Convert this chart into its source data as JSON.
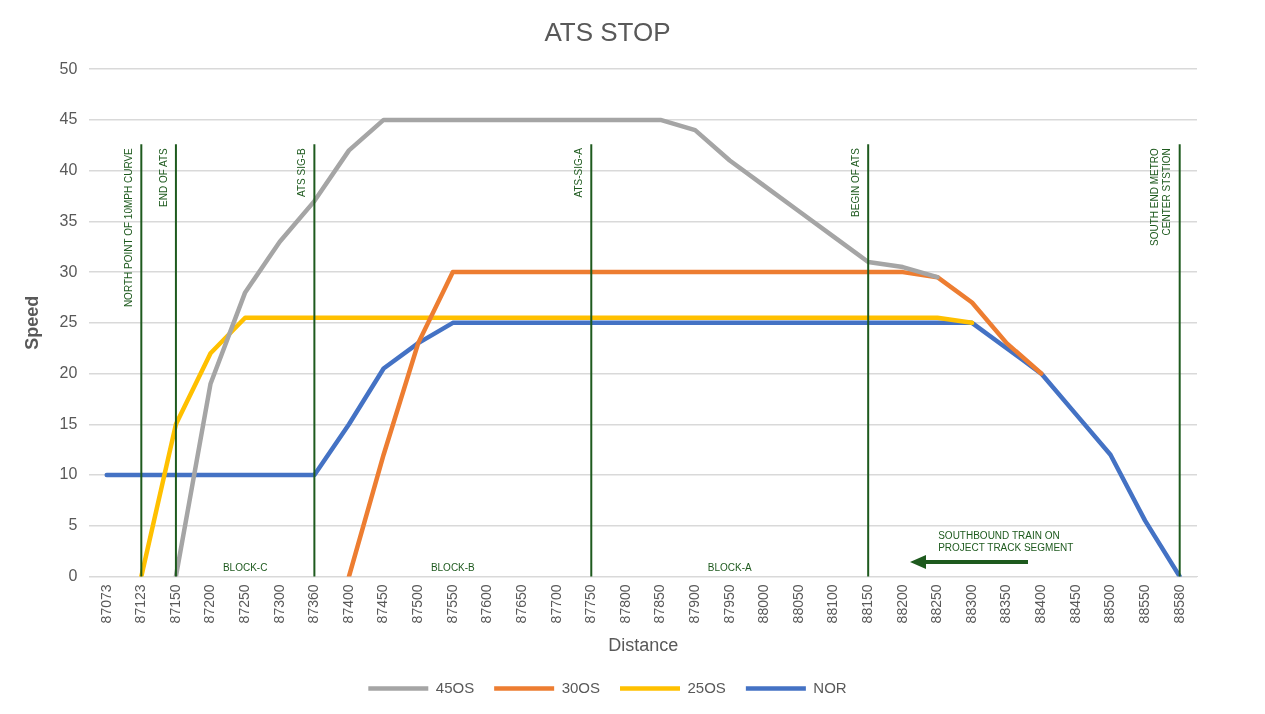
{
  "chart_data": {
    "type": "line",
    "title": "ATS STOP",
    "xlabel": "Distance",
    "ylabel": "Speed",
    "categories": [
      "87073",
      "87123",
      "87150",
      "87200",
      "87250",
      "87300",
      "87360",
      "87400",
      "87450",
      "87500",
      "87550",
      "87600",
      "87650",
      "87700",
      "87750",
      "87800",
      "87850",
      "87900",
      "87950",
      "88000",
      "88050",
      "88100",
      "88150",
      "88200",
      "88250",
      "88300",
      "88350",
      "88400",
      "88450",
      "88500",
      "88550",
      "88580"
    ],
    "series": [
      {
        "name": "45OS",
        "color": "#a5a5a5",
        "values": [
          null,
          null,
          0,
          19,
          28,
          33,
          37,
          42,
          45,
          45,
          45,
          45,
          45,
          45,
          45,
          45,
          45,
          44,
          41,
          38.5,
          36,
          33.5,
          31,
          30.5,
          29.5,
          null,
          null,
          null,
          null,
          null,
          null,
          null
        ]
      },
      {
        "name": "30OS",
        "color": "#ed7d31",
        "values": [
          null,
          null,
          null,
          null,
          null,
          null,
          null,
          0,
          12,
          23,
          30,
          30,
          30,
          30,
          30,
          30,
          30,
          30,
          30,
          30,
          30,
          30,
          30,
          30,
          29.5,
          27,
          23,
          20,
          null,
          null,
          null,
          null
        ]
      },
      {
        "name": "25OS",
        "color": "#ffc000",
        "values": [
          null,
          0,
          15,
          22,
          25.5,
          25.5,
          25.5,
          25.5,
          25.5,
          25.5,
          25.5,
          25.5,
          25.5,
          25.5,
          25.5,
          25.5,
          25.5,
          25.5,
          25.5,
          25.5,
          25.5,
          25.5,
          25.5,
          25.5,
          25.5,
          25,
          null,
          null,
          null,
          null,
          null,
          null
        ]
      },
      {
        "name": "NOR",
        "color": "#4472c4",
        "values": [
          10,
          10,
          10,
          10,
          10,
          10,
          10,
          15,
          20.5,
          23,
          25,
          25,
          25,
          25,
          25,
          25,
          25,
          25,
          25,
          25,
          25,
          25,
          25,
          25,
          25,
          25,
          22.5,
          20,
          16,
          12,
          5.5,
          0
        ]
      }
    ],
    "ylim": [
      0,
      50
    ],
    "yticks": [
      0,
      5,
      10,
      15,
      20,
      25,
      30,
      35,
      40,
      45,
      50
    ],
    "grid": "y",
    "legend": "bottom",
    "marker": "none",
    "line_style": "solid",
    "ref_lines": [
      {
        "axis": "x",
        "value": "87123",
        "label": "NORTH POINT OF 10MPH CURVE",
        "color": "#1e5a1e"
      },
      {
        "axis": "x",
        "value": "87150",
        "label": "END OF ATS",
        "color": "#1e5a1e"
      },
      {
        "axis": "x",
        "value": "87360",
        "label": "ATS SIG-B",
        "color": "#1e5a1e"
      },
      {
        "axis": "x",
        "value": "87750",
        "label": "ATS-SIG-A",
        "color": "#1e5a1e"
      },
      {
        "axis": "x",
        "value": "88150",
        "label": "BEGIN OF ATS",
        "color": "#1e5a1e"
      },
      {
        "axis": "x",
        "value": "88580",
        "label": "SOUTH END METRO\nCENTER STSTION",
        "color": "#1e5a1e"
      }
    ],
    "annotations": [
      "BLOCK-C",
      "BLOCK-B",
      "BLOCK-A",
      "SOUTHBOUND TRAIN ON\nPROJECT TRACK SEGMENT"
    ]
  }
}
